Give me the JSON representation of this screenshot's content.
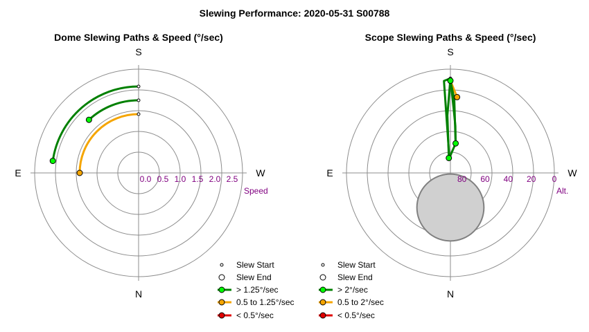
{
  "title": "Slewing Performance: 2020-05-31 S00788",
  "colors": {
    "fast": "#008000",
    "fast_marker": "#00ff00",
    "medium": "#f5a500",
    "slow": "#e00000",
    "grid": "#8c8c8c",
    "axis_label": "#800080",
    "zenith_fill": "#d0d0d0",
    "zenith_edge": "#808080"
  },
  "chart_data": [
    {
      "type": "polar-path",
      "title": "Dome Slewing Paths & Speed (°/sec)",
      "compass": {
        "top": "S",
        "bottom": "N",
        "left": "E",
        "right": "W"
      },
      "radial_axis": {
        "label": "Speed",
        "ticks": [
          "2.5",
          "2.0",
          "1.5",
          "1.0",
          "0.5",
          "0.0"
        ],
        "tick_values": [
          2.5,
          2.0,
          1.5,
          1.0,
          0.5,
          0.0
        ],
        "range": [
          0.0,
          3.0
        ],
        "inverted": true
      },
      "legend": {
        "position": "bottom-right",
        "entries": [
          "Slew Start",
          "Slew End",
          "> 1.25°/sec",
          "0.5 to 1.25°/sec",
          "< 0.5°/sec"
        ]
      },
      "paths": [
        {
          "speed_class": "medium",
          "speed": 1.7,
          "az_start": 180,
          "az_end": 90
        },
        {
          "speed_class": "fast",
          "speed": 2.1,
          "az_start": 180,
          "az_end": 137
        },
        {
          "speed_class": "fast",
          "speed": 2.5,
          "az_start": 180,
          "az_end": 98
        }
      ]
    },
    {
      "type": "polar-path",
      "title": "Scope Slewing Paths & Speed (°/sec)",
      "compass": {
        "top": "S",
        "bottom": "N",
        "left": "E",
        "right": "W"
      },
      "radial_axis": {
        "label": "Alt.",
        "ticks": [
          "80",
          "60",
          "40",
          "20",
          "0"
        ],
        "tick_values": [
          80,
          60,
          40,
          20,
          0
        ],
        "range": [
          90,
          0
        ],
        "inverted": true
      },
      "zenith_exclusion": {
        "alt_center": 60,
        "alt_radius": 29,
        "az": 0
      },
      "legend": {
        "position": "bottom-right",
        "entries": [
          "Slew Start",
          "Slew End",
          "> 2°/sec",
          "0.5 to 2°/sec",
          "< 0.5°/sec"
        ]
      },
      "paths": [
        {
          "speed_class": "medium",
          "points": [
            [
              180,
              10
            ],
            [
              185,
              24
            ]
          ]
        },
        {
          "speed_class": "fast",
          "points": [
            [
              180,
              8
            ],
            [
              180,
              10
            ],
            [
              183,
              26
            ],
            [
              190,
              64
            ],
            [
              176,
              77
            ]
          ]
        },
        {
          "speed_class": "fast",
          "points": [
            [
              176,
              77
            ],
            [
              176,
              10
            ],
            [
              180,
              8
            ]
          ]
        },
        {
          "speed_class": "fast",
          "points": [
            [
              180,
              8
            ],
            [
              183,
              35
            ],
            [
              186,
              49
            ],
            [
              190,
              64
            ]
          ]
        },
        {
          "speed_class": "fast",
          "points": [
            [
              180,
              8
            ],
            [
              177,
              40
            ],
            [
              174,
              77
            ]
          ]
        }
      ],
      "start_markers": [
        [
          180,
          8
        ],
        [
          174,
          77
        ]
      ],
      "end_markers": [
        {
          "az": 180,
          "alt": 10,
          "speed_class": "fast"
        },
        {
          "az": 185,
          "alt": 24,
          "speed_class": "medium"
        },
        {
          "az": 190,
          "alt": 64,
          "speed_class": "fast"
        },
        {
          "az": 174,
          "alt": 77,
          "speed_class": "fast"
        }
      ]
    }
  ]
}
